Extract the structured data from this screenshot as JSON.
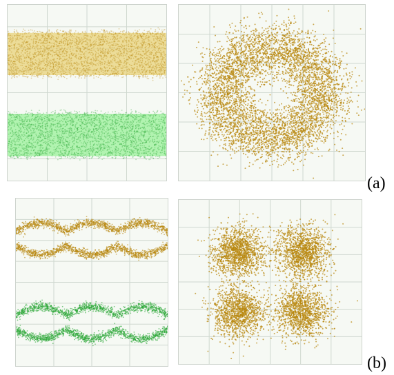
{
  "labels": {
    "a": "(a)",
    "b": "(b)"
  },
  "colors": {
    "tone_gold": "#b8860b",
    "tone_gold_light": "#e8d27a",
    "tone_green": "#2fa83a",
    "tone_green_light": "#9af09a",
    "grid": "#cfd8cf",
    "background": "#f6f9f4"
  },
  "chart_data": [
    {
      "id": "a-eye",
      "type": "scatter",
      "title": "",
      "grid": true,
      "panel": "eye",
      "eye_open": false,
      "periods": 3,
      "series": [
        {
          "color": "tone_gold",
          "level_center": 0.28
        },
        {
          "color": "tone_green",
          "level_center": 0.74
        }
      ]
    },
    {
      "id": "a-constellation",
      "type": "scatter",
      "title": "",
      "grid": true,
      "panel": "constellation",
      "shape": "ring",
      "color": "tone_gold"
    },
    {
      "id": "b-eye",
      "type": "scatter",
      "title": "",
      "grid": true,
      "panel": "eye",
      "eye_open": true,
      "periods": 3,
      "series": [
        {
          "color": "tone_gold",
          "level_center": 0.24
        },
        {
          "color": "tone_green",
          "level_center": 0.74
        }
      ]
    },
    {
      "id": "b-constellation",
      "type": "scatter",
      "title": "",
      "grid": true,
      "panel": "constellation",
      "shape": "four-cluster",
      "color": "tone_gold"
    }
  ]
}
